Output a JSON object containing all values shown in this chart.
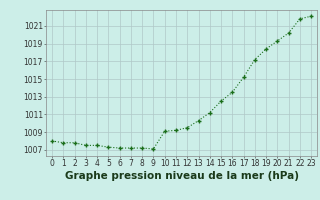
{
  "x": [
    0,
    1,
    2,
    3,
    4,
    5,
    6,
    7,
    8,
    9,
    10,
    11,
    12,
    13,
    14,
    15,
    16,
    17,
    18,
    19,
    20,
    21,
    22,
    23
  ],
  "y": [
    1008.0,
    1007.8,
    1007.8,
    1007.5,
    1007.5,
    1007.3,
    1007.2,
    1007.2,
    1007.2,
    1007.1,
    1009.1,
    1009.2,
    1009.5,
    1010.3,
    1011.2,
    1012.5,
    1013.5,
    1015.2,
    1017.2,
    1018.4,
    1019.3,
    1020.2,
    1021.8,
    1022.1
  ],
  "line_color": "#1a6e1a",
  "marker_color": "#1a6e1a",
  "bg_color": "#cceee8",
  "grid_color": "#b0c8c8",
  "title": "Graphe pression niveau de la mer (hPa)",
  "ylabel_ticks": [
    1007,
    1009,
    1011,
    1013,
    1015,
    1017,
    1019,
    1021
  ],
  "xtick_labels": [
    "0",
    "1",
    "2",
    "3",
    "4",
    "5",
    "6",
    "7",
    "8",
    "9",
    "10",
    "11",
    "12",
    "13",
    "14",
    "15",
    "16",
    "17",
    "18",
    "19",
    "20",
    "21",
    "22",
    "23"
  ],
  "ylim": [
    1006.3,
    1022.8
  ],
  "xlim": [
    -0.5,
    23.5
  ],
  "title_fontsize": 7.5,
  "tick_fontsize": 5.5
}
